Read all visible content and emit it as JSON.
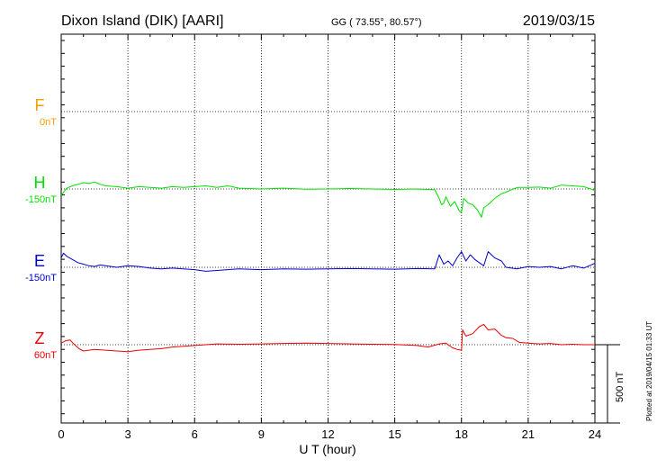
{
  "header": {
    "station": "Dixon Island (DIK)  [AARI]",
    "coords": "GG ( 73.55°,  80.57°)",
    "date": "2019/03/15"
  },
  "plotted_note": "Plotted at 2019/04/15 01:33 UT",
  "scale_label": "500 nT",
  "chart_data": {
    "type": "line",
    "xlabel": "U T (hour)",
    "xlim": [
      0,
      24
    ],
    "xticks": [
      "0",
      "3",
      "6",
      "9",
      "12",
      "15",
      "18",
      "21",
      "24"
    ],
    "grid": true,
    "scale_bar_nT": 500,
    "series": [
      {
        "name": "F",
        "baseline_label": "0nT",
        "color": "#f5a000",
        "x": [],
        "y": []
      },
      {
        "name": "H",
        "baseline_label": "-150nT",
        "color": "#00e000",
        "x": [
          0,
          0.25,
          0.5,
          0.75,
          1.0,
          1.25,
          1.5,
          1.75,
          2.0,
          2.5,
          3.0,
          3.5,
          4.0,
          4.5,
          5.0,
          5.5,
          6.0,
          6.5,
          7.0,
          7.5,
          8.0,
          9.0,
          10.0,
          11.0,
          12.0,
          13.0,
          14.0,
          15.0,
          16.0,
          16.8,
          17.0,
          17.1,
          17.2,
          17.3,
          17.5,
          17.7,
          17.9,
          18.0,
          18.1,
          18.3,
          18.5,
          18.7,
          18.9,
          19.0,
          19.2,
          19.5,
          19.8,
          20.0,
          20.5,
          21.0,
          21.5,
          22.0,
          22.5,
          23.0,
          23.5,
          24.0
        ],
        "y": [
          -40,
          5,
          20,
          30,
          40,
          35,
          45,
          30,
          20,
          15,
          5,
          15,
          10,
          5,
          15,
          10,
          15,
          20,
          10,
          20,
          5,
          0,
          5,
          -2,
          0,
          3,
          0,
          -3,
          0,
          -5,
          -60,
          -100,
          -90,
          -50,
          -110,
          -80,
          -140,
          -150,
          -60,
          -90,
          -100,
          -130,
          -180,
          -120,
          -100,
          -60,
          -30,
          -20,
          10,
          10,
          12,
          5,
          25,
          20,
          15,
          -10
        ]
      },
      {
        "name": "E",
        "baseline_label": "-150nT",
        "color": "#0000cc",
        "x": [
          0,
          0.1,
          0.25,
          0.5,
          0.75,
          1.0,
          1.25,
          1.5,
          1.75,
          2.0,
          2.5,
          3.0,
          3.5,
          4.0,
          4.5,
          5.0,
          5.5,
          6.0,
          6.5,
          7.0,
          7.5,
          8.0,
          9.0,
          10.0,
          11.0,
          12.0,
          13.0,
          14.0,
          15.0,
          16.0,
          16.8,
          17.0,
          17.2,
          17.4,
          17.6,
          17.8,
          18.0,
          18.2,
          18.4,
          18.6,
          18.8,
          19.0,
          19.2,
          19.5,
          19.8,
          20.0,
          20.5,
          21.0,
          21.5,
          22.0,
          22.5,
          23.0,
          23.5,
          24.0
        ],
        "y": [
          60,
          90,
          70,
          50,
          30,
          20,
          10,
          5,
          15,
          10,
          0,
          10,
          5,
          -5,
          -10,
          -5,
          -10,
          -15,
          -25,
          -20,
          -15,
          -10,
          -15,
          -10,
          -12,
          -10,
          -8,
          -10,
          -12,
          -8,
          -10,
          80,
          20,
          40,
          10,
          60,
          100,
          40,
          80,
          50,
          30,
          10,
          100,
          60,
          40,
          0,
          -10,
          5,
          0,
          5,
          -10,
          10,
          -5,
          25
        ]
      },
      {
        "name": "Z",
        "baseline_label": "60nT",
        "color": "#ee0000",
        "x": [
          0,
          0.2,
          0.4,
          0.6,
          0.8,
          1.0,
          1.5,
          2.0,
          2.5,
          3.0,
          3.5,
          4.0,
          4.5,
          5.0,
          5.5,
          6.0,
          6.5,
          7.0,
          8.0,
          9.0,
          10.0,
          11.0,
          12.0,
          13.0,
          14.0,
          15.0,
          16.0,
          16.5,
          17.0,
          17.3,
          17.6,
          17.8,
          18.0,
          18.05,
          18.2,
          18.5,
          18.8,
          19.0,
          19.2,
          19.5,
          19.8,
          20.0,
          20.3,
          20.6,
          21.0,
          21.5,
          22.0,
          22.5,
          23.0,
          23.5,
          24.0
        ],
        "y": [
          10,
          25,
          30,
          0,
          -25,
          -40,
          -30,
          -35,
          -40,
          -45,
          -35,
          -30,
          -25,
          -15,
          -10,
          -5,
          0,
          5,
          3,
          5,
          8,
          10,
          8,
          5,
          3,
          2,
          -5,
          -15,
          5,
          10,
          -20,
          -30,
          -35,
          95,
          55,
          70,
          115,
          130,
          95,
          100,
          60,
          45,
          40,
          15,
          10,
          5,
          8,
          0,
          3,
          0,
          0
        ]
      }
    ]
  }
}
